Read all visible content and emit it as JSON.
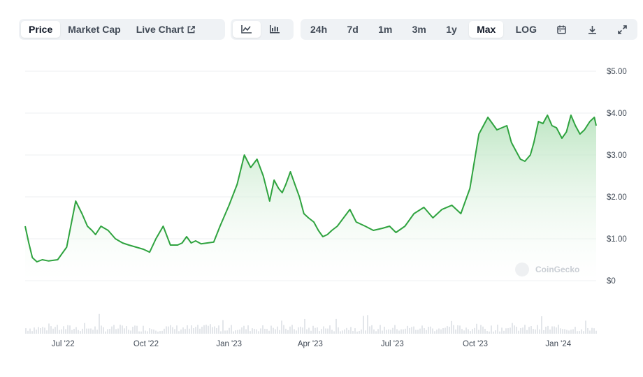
{
  "toolbar": {
    "views": [
      {
        "label": "Price",
        "active": true
      },
      {
        "label": "Market Cap",
        "active": false
      },
      {
        "label": "Live Chart",
        "active": false,
        "icon": "external-link-icon"
      }
    ],
    "chart_types": [
      {
        "icon": "line-chart-icon",
        "active": true
      },
      {
        "icon": "candlestick-icon",
        "active": false
      }
    ],
    "ranges": [
      {
        "label": "24h",
        "active": false
      },
      {
        "label": "7d",
        "active": false
      },
      {
        "label": "1m",
        "active": false
      },
      {
        "label": "3m",
        "active": false
      },
      {
        "label": "1y",
        "active": false
      },
      {
        "label": "Max",
        "active": true
      },
      {
        "label": "LOG",
        "active": false
      }
    ],
    "tools": [
      "calendar-icon",
      "download-icon",
      "expand-icon"
    ]
  },
  "watermark": "CoinGecko",
  "colors": {
    "line": "#2fa33f",
    "area_top": "#b7e3bd",
    "area_bottom": "#ffffff",
    "grid": "#eceff2",
    "volume": "#e3e6ea"
  },
  "chart_data": {
    "type": "line",
    "series_unit": "USD",
    "y_tick_labels": [
      "$5.00",
      "$4.00",
      "$3.00",
      "$2.00",
      "$1.00",
      "$0"
    ],
    "y_ticks": [
      5,
      4,
      3,
      2,
      1,
      0
    ],
    "ylim": [
      0,
      5
    ],
    "xlim": [
      "2022-05-20",
      "2024-02-12"
    ],
    "x_ticks": [
      "2022-07-01",
      "2022-10-01",
      "2023-01-01",
      "2023-04-01",
      "2023-07-01",
      "2023-10-01",
      "2024-01-01"
    ],
    "x_tick_labels": [
      "Jul '22",
      "Oct '22",
      "Jan '23",
      "Apr '23",
      "Jul '23",
      "Oct '23",
      "Jan '24"
    ],
    "grid": true,
    "x": [
      "2022-05-20",
      "2022-05-24",
      "2022-05-28",
      "2022-06-02",
      "2022-06-08",
      "2022-06-15",
      "2022-06-25",
      "2022-07-05",
      "2022-07-15",
      "2022-07-22",
      "2022-07-28",
      "2022-08-02",
      "2022-08-06",
      "2022-08-12",
      "2022-08-20",
      "2022-08-28",
      "2022-09-05",
      "2022-09-12",
      "2022-09-20",
      "2022-09-28",
      "2022-10-05",
      "2022-10-12",
      "2022-10-20",
      "2022-10-28",
      "2022-11-05",
      "2022-11-10",
      "2022-11-15",
      "2022-11-20",
      "2022-11-25",
      "2022-12-01",
      "2022-12-08",
      "2022-12-15",
      "2022-12-22",
      "2023-01-01",
      "2023-01-10",
      "2023-01-18",
      "2023-01-25",
      "2023-02-01",
      "2023-02-08",
      "2023-02-15",
      "2023-02-20",
      "2023-02-25",
      "2023-03-01",
      "2023-03-05",
      "2023-03-10",
      "2023-03-15",
      "2023-03-20",
      "2023-03-25",
      "2023-03-30",
      "2023-04-05",
      "2023-04-10",
      "2023-04-15",
      "2023-04-20",
      "2023-04-25",
      "2023-05-01",
      "2023-05-08",
      "2023-05-15",
      "2023-05-22",
      "2023-06-01",
      "2023-06-10",
      "2023-06-20",
      "2023-06-28",
      "2023-07-05",
      "2023-07-15",
      "2023-07-25",
      "2023-08-05",
      "2023-08-15",
      "2023-08-25",
      "2023-09-05",
      "2023-09-15",
      "2023-09-25",
      "2023-10-05",
      "2023-10-15",
      "2023-10-25",
      "2023-11-05",
      "2023-11-10",
      "2023-11-15",
      "2023-11-20",
      "2023-11-25",
      "2023-12-01",
      "2023-12-05",
      "2023-12-10",
      "2023-12-15",
      "2023-12-20",
      "2023-12-25",
      "2023-12-30",
      "2024-01-05",
      "2024-01-10",
      "2024-01-15",
      "2024-01-20",
      "2024-01-25",
      "2024-01-30",
      "2024-02-05",
      "2024-02-10",
      "2024-02-12"
    ],
    "y": [
      1.3,
      0.9,
      0.55,
      0.45,
      0.5,
      0.47,
      0.5,
      0.8,
      1.9,
      1.6,
      1.3,
      1.2,
      1.1,
      1.3,
      1.2,
      1.0,
      0.9,
      0.85,
      0.8,
      0.75,
      0.68,
      1.0,
      1.3,
      0.85,
      0.85,
      0.9,
      1.05,
      0.9,
      0.95,
      0.88,
      0.9,
      0.92,
      1.3,
      1.8,
      2.3,
      3.0,
      2.7,
      2.9,
      2.5,
      1.9,
      2.4,
      2.2,
      2.1,
      2.3,
      2.6,
      2.3,
      2.0,
      1.6,
      1.5,
      1.4,
      1.2,
      1.05,
      1.1,
      1.2,
      1.3,
      1.5,
      1.7,
      1.4,
      1.3,
      1.2,
      1.25,
      1.3,
      1.15,
      1.3,
      1.6,
      1.75,
      1.5,
      1.7,
      1.8,
      1.6,
      2.2,
      3.5,
      3.9,
      3.6,
      3.7,
      3.3,
      3.1,
      2.9,
      2.85,
      3.0,
      3.3,
      3.8,
      3.75,
      3.95,
      3.7,
      3.65,
      3.4,
      3.55,
      3.95,
      3.7,
      3.5,
      3.6,
      3.8,
      3.9,
      3.7
    ]
  }
}
